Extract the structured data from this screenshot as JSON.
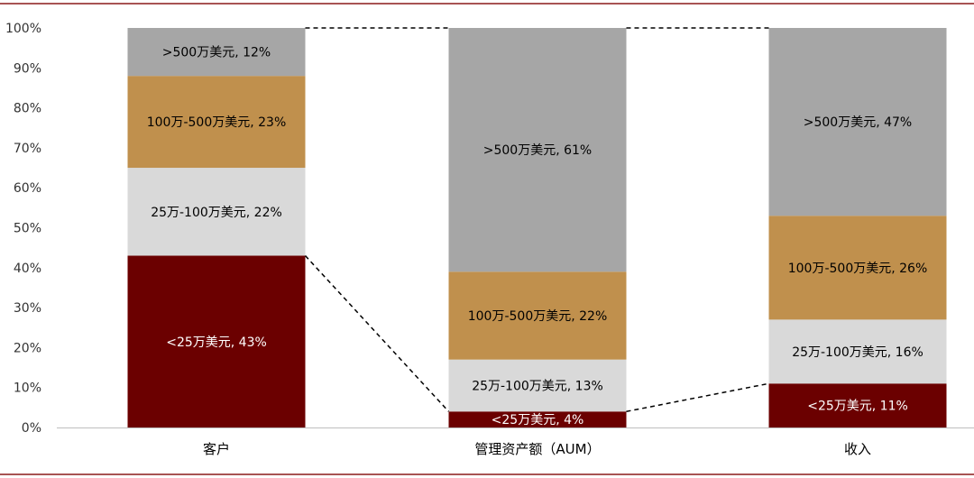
{
  "chart_data": {
    "type": "bar",
    "stacked": true,
    "percent": true,
    "categories": [
      "客户",
      "管理资产额（AUM）",
      "收入"
    ],
    "series": [
      {
        "name": "<25万美元",
        "values": [
          43,
          4,
          11
        ],
        "labels": [
          "<25万美元, 43%",
          "<25万美元, 4%",
          "<25万美元, 11%"
        ],
        "color": "#6b0000",
        "label_color": "#ffffff"
      },
      {
        "name": "25万-100万美元",
        "values": [
          22,
          13,
          16
        ],
        "labels": [
          "25万-100万美元, 22%",
          "25万-100万美元, 13%",
          "25万-100万美元, 16%"
        ],
        "color": "#d9d9d9",
        "label_color": "#000000"
      },
      {
        "name": "100万-500万美元",
        "values": [
          23,
          22,
          26
        ],
        "labels": [
          "100万-500万美元, 23%",
          "100万-500万美元, 22%",
          "100万-500万美元, 26%"
        ],
        "color": "#c0904d",
        "label_color": "#000000"
      },
      {
        "name": ">500万美元",
        "values": [
          12,
          61,
          47
        ],
        "labels": [
          ">500万美元, 12%",
          ">500万美元, 61%",
          ">500万美元, 47%"
        ],
        "color": "#a6a6a6",
        "label_color": "#000000"
      }
    ],
    "ylim": [
      0,
      100
    ],
    "yticks": [
      "0%",
      "10%",
      "20%",
      "30%",
      "40%",
      "50%",
      "60%",
      "70%",
      "80%",
      "90%",
      "100%"
    ],
    "connector_style": "dashed",
    "border_color": "#8b1a1a"
  }
}
